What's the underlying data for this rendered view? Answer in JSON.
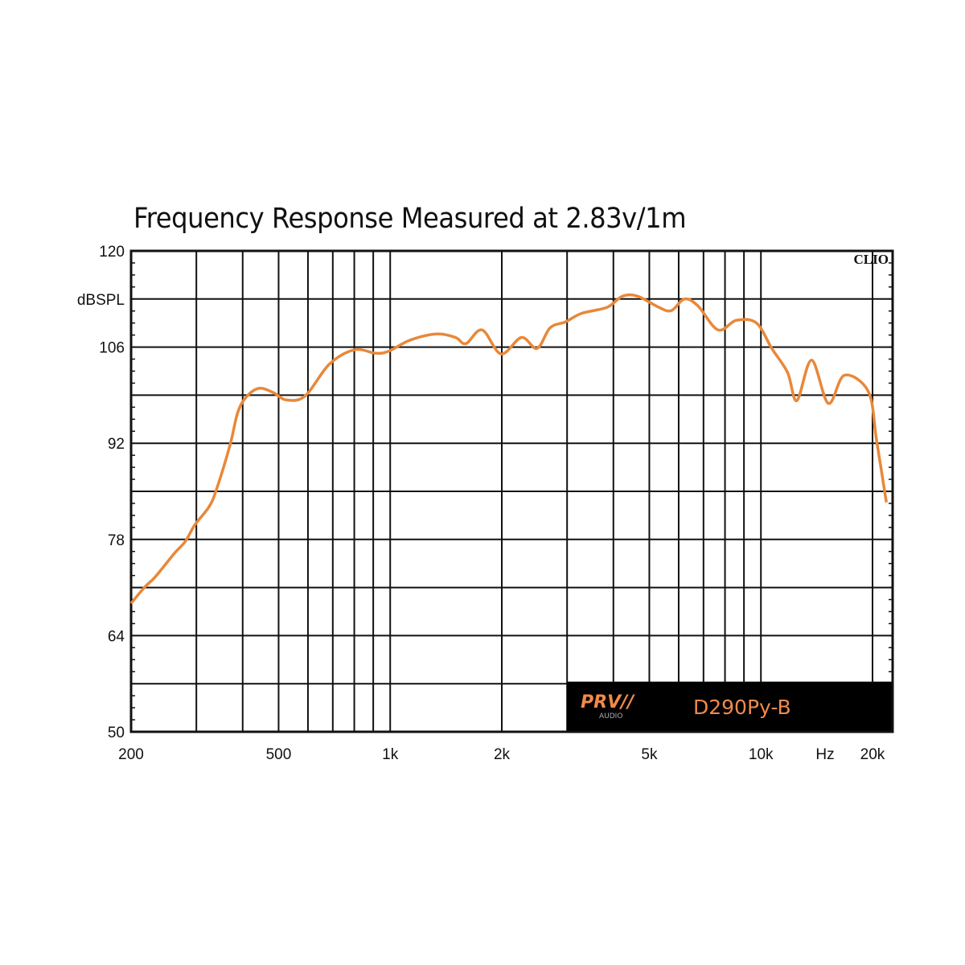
{
  "chart_data": {
    "type": "line",
    "title": "Frequency Response Measured at 2.83v/1m",
    "ylabel": "dBSPL",
    "xlabel": "Hz",
    "x_scale": "log",
    "xlim": [
      200,
      22700
    ],
    "ylim": [
      50,
      120
    ],
    "grid": true,
    "y_ticks": [
      120,
      106,
      92,
      78,
      64,
      50
    ],
    "y_gridlines": [
      120,
      113,
      106,
      99,
      92,
      85,
      78,
      71,
      64,
      57,
      50
    ],
    "x_ticks": [
      {
        "value": 200,
        "label": "200"
      },
      {
        "value": 500,
        "label": "500"
      },
      {
        "value": 1000,
        "label": "1k"
      },
      {
        "value": 2000,
        "label": "2k"
      },
      {
        "value": 5000,
        "label": "5k"
      },
      {
        "value": 10000,
        "label": "10k"
      },
      {
        "value": 20000,
        "label": "20k"
      }
    ],
    "x_gridlines": [
      200,
      300,
      400,
      500,
      600,
      700,
      800,
      900,
      1000,
      2000,
      3000,
      4000,
      5000,
      6000,
      7000,
      8000,
      9000,
      10000,
      20000
    ],
    "series_color": "#e8883a",
    "x": [
      200,
      218,
      232,
      262,
      280,
      297,
      325,
      341,
      370,
      388,
      410,
      443,
      483,
      525,
      590,
      685,
      800,
      915,
      990,
      1130,
      1330,
      1500,
      1600,
      1770,
      1990,
      2260,
      2490,
      2700,
      2980,
      3280,
      3850,
      4230,
      4650,
      5300,
      5730,
      6220,
      6760,
      7660,
      8590,
      9730,
      10700,
      11800,
      12500,
      13700,
      15200,
      16800,
      19500,
      20500,
      21800
    ],
    "y": [
      68.7,
      71.1,
      72.5,
      76.0,
      77.7,
      80.1,
      82.8,
      85.5,
      91.8,
      96.5,
      98.8,
      100.0,
      99.4,
      98.3,
      98.9,
      103.5,
      105.6,
      105.1,
      105.4,
      107.0,
      107.9,
      107.4,
      106.5,
      108.5,
      105.0,
      107.4,
      105.8,
      108.8,
      109.7,
      110.9,
      111.8,
      113.4,
      113.4,
      111.8,
      111.3,
      113.0,
      112.0,
      108.5,
      109.9,
      109.5,
      105.8,
      102.3,
      98.2,
      104.1,
      97.8,
      101.9,
      99.5,
      92.5,
      83.4
    ]
  },
  "badge": {
    "software": "CLIO",
    "brand": "PRV",
    "brand_sub": "AUDIO",
    "model": "D290Py-B"
  }
}
